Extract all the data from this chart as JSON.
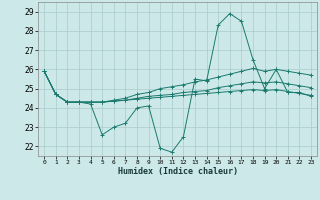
{
  "xlabel": "Humidex (Indice chaleur)",
  "x": [
    0,
    1,
    2,
    3,
    4,
    5,
    6,
    7,
    8,
    9,
    10,
    11,
    12,
    13,
    14,
    15,
    16,
    17,
    18,
    19,
    20,
    21,
    22,
    23
  ],
  "line1": [
    25.9,
    24.7,
    24.3,
    24.3,
    24.2,
    22.6,
    23.0,
    23.2,
    24.0,
    24.1,
    21.9,
    21.7,
    22.5,
    25.5,
    25.4,
    28.3,
    28.9,
    28.5,
    26.5,
    25.0,
    26.0,
    24.8,
    24.8,
    24.6
  ],
  "line2": [
    25.9,
    24.7,
    24.3,
    24.3,
    24.3,
    24.3,
    24.4,
    24.5,
    24.7,
    24.8,
    25.0,
    25.1,
    25.2,
    25.35,
    25.45,
    25.6,
    25.75,
    25.9,
    26.05,
    25.9,
    26.0,
    25.9,
    25.8,
    25.7
  ],
  "line3": [
    25.9,
    24.7,
    24.3,
    24.3,
    24.3,
    24.3,
    24.35,
    24.4,
    24.5,
    24.6,
    24.65,
    24.7,
    24.8,
    24.85,
    24.9,
    25.05,
    25.15,
    25.25,
    25.35,
    25.3,
    25.35,
    25.25,
    25.15,
    25.05
  ],
  "line4": [
    25.9,
    24.7,
    24.3,
    24.3,
    24.3,
    24.3,
    24.35,
    24.4,
    24.45,
    24.5,
    24.55,
    24.6,
    24.65,
    24.7,
    24.75,
    24.8,
    24.85,
    24.9,
    24.95,
    24.9,
    24.95,
    24.85,
    24.75,
    24.65
  ],
  "line_color": "#1a7a6e",
  "bg_color": "#cce8e8",
  "grid_color": "#aacccc",
  "ylim": [
    21.5,
    29.5
  ],
  "yticks": [
    22,
    23,
    24,
    25,
    26,
    27,
    28,
    29
  ],
  "xlim": [
    -0.5,
    23.5
  ]
}
